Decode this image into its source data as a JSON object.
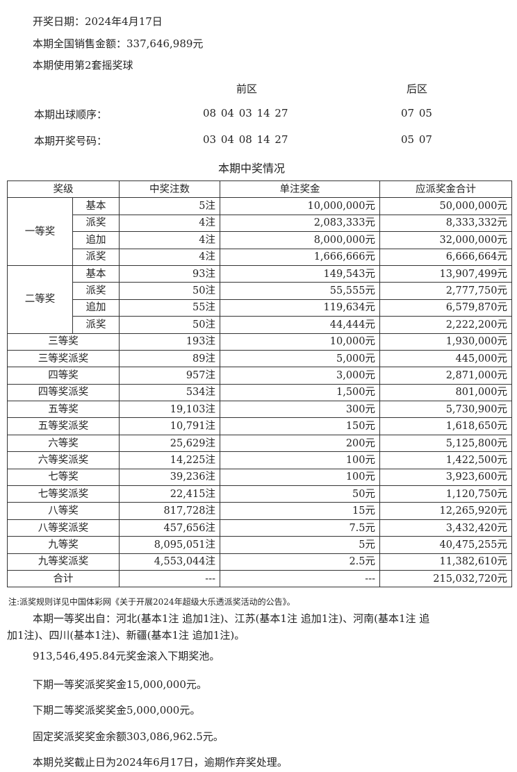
{
  "header": {
    "draw_date": "开奖日期：2024年4月17日",
    "sales": "本期全国销售金额：337,646,989元",
    "ball_set": "本期使用第2套摇奖球"
  },
  "numbers": {
    "front_label": "前区",
    "back_label": "后区",
    "order_label": "本期出球顺序：",
    "order_front": "08 04 03 14 27",
    "order_back": "07 05",
    "result_label": "本期开奖号码：",
    "result_front": "03 04 08 14 27",
    "result_back": "05 07"
  },
  "table": {
    "title": "本期中奖情况",
    "headers": [
      "奖级",
      "中奖注数",
      "单注奖金",
      "应派奖金合计"
    ],
    "groups": [
      {
        "name": "一等奖",
        "rows": [
          [
            "基本",
            "5注",
            "10,000,000元",
            "50,000,000元"
          ],
          [
            "派奖",
            "4注",
            "2,083,333元",
            "8,333,332元"
          ],
          [
            "追加",
            "4注",
            "8,000,000元",
            "32,000,000元"
          ],
          [
            "派奖",
            "4注",
            "1,666,666元",
            "6,666,664元"
          ]
        ]
      },
      {
        "name": "二等奖",
        "rows": [
          [
            "基本",
            "93注",
            "149,543元",
            "13,907,499元"
          ],
          [
            "派奖",
            "50注",
            "55,555元",
            "2,777,750元"
          ],
          [
            "追加",
            "55注",
            "119,634元",
            "6,579,870元"
          ],
          [
            "派奖",
            "50注",
            "44,444元",
            "2,222,200元"
          ]
        ]
      }
    ],
    "rows": [
      [
        "三等奖",
        "193注",
        "10,000元",
        "1,930,000元"
      ],
      [
        "三等奖派奖",
        "89注",
        "5,000元",
        "445,000元"
      ],
      [
        "四等奖",
        "957注",
        "3,000元",
        "2,871,000元"
      ],
      [
        "四等奖派奖",
        "534注",
        "1,500元",
        "801,000元"
      ],
      [
        "五等奖",
        "19,103注",
        "300元",
        "5,730,900元"
      ],
      [
        "五等奖派奖",
        "10,791注",
        "150元",
        "1,618,650元"
      ],
      [
        "六等奖",
        "25,629注",
        "200元",
        "5,125,800元"
      ],
      [
        "六等奖派奖",
        "14,225注",
        "100元",
        "1,422,500元"
      ],
      [
        "七等奖",
        "39,236注",
        "100元",
        "3,923,600元"
      ],
      [
        "七等奖派奖",
        "22,415注",
        "50元",
        "1,120,750元"
      ],
      [
        "八等奖",
        "817,728注",
        "15元",
        "12,265,920元"
      ],
      [
        "八等奖派奖",
        "457,656注",
        "7.5元",
        "3,432,420元"
      ],
      [
        "九等奖",
        "8,095,051注",
        "5元",
        "40,475,255元"
      ],
      [
        "九等奖派奖",
        "4,553,044注",
        "2.5元",
        "11,382,610元"
      ],
      [
        "合计",
        "---",
        "---",
        "215,032,720元"
      ]
    ]
  },
  "note": "注:派奖规则详见中国体彩网《关于开展2024年超级大乐透派奖活动的公告》。",
  "paragraphs": {
    "winners_line1": "本期一等奖出自：河北(基本1注 追加1注)、江苏(基本1注 追加1注)、河南(基本1注 追",
    "winners_line2": "加1注)、四川(基本1注)、新疆(基本1注 追加1注)。",
    "rollover": "913,546,495.84元奖金滚入下期奖池。",
    "next_first": "下期一等奖派奖奖金15,000,000元。",
    "next_second": "下期二等奖派奖奖金5,000,000元。",
    "fixed_balance": "固定奖派奖奖金余额303,086,962.5元。",
    "deadline": "本期兑奖截止日为2024年6月17日，逾期作弃奖处理。"
  }
}
